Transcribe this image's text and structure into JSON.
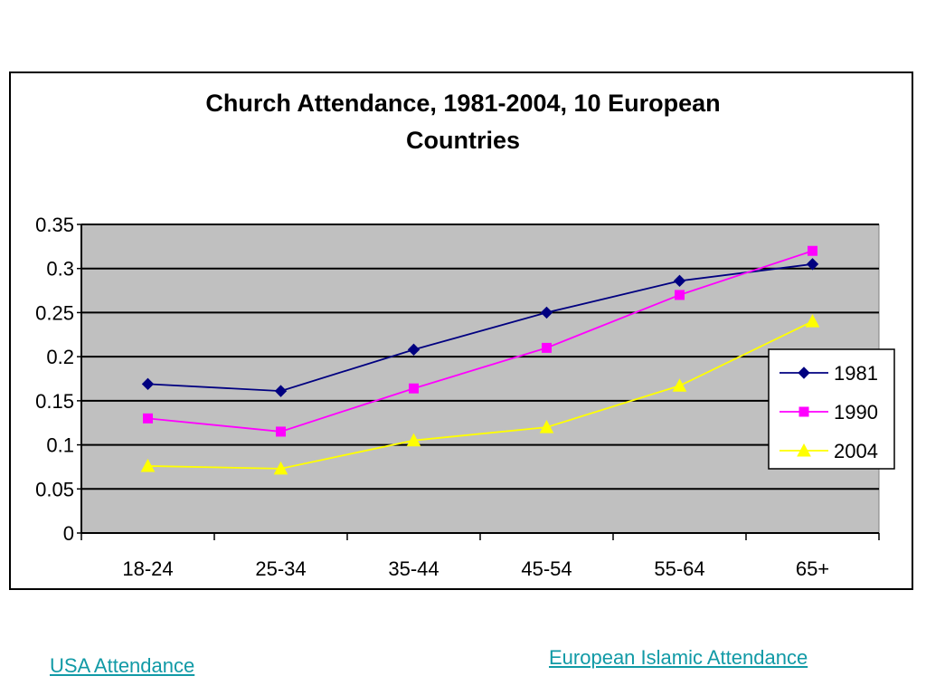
{
  "chart_data": {
    "type": "line",
    "title_lines": [
      "Church Attendance, 1981-2004, 10 European",
      "Countries"
    ],
    "categories": [
      "18-24",
      "25-34",
      "35-44",
      "45-54",
      "55-64",
      "65+"
    ],
    "ylim": [
      0,
      0.35
    ],
    "yticks": [
      "0",
      "0.05",
      "0.1",
      "0.15",
      "0.2",
      "0.25",
      "0.3",
      "0.35"
    ],
    "ytick_values": [
      0,
      0.05,
      0.1,
      0.15,
      0.2,
      0.25,
      0.3,
      0.35
    ],
    "grid": true,
    "plot_background": "#c0c0c0",
    "legend_position": "right",
    "series": [
      {
        "name": "1981",
        "values": [
          0.169,
          0.161,
          0.208,
          0.25,
          0.286,
          0.305
        ],
        "color": "#000080",
        "marker": "diamond"
      },
      {
        "name": "1990",
        "values": [
          0.13,
          0.115,
          0.164,
          0.21,
          0.27,
          0.32
        ],
        "color": "#ff00ff",
        "marker": "square"
      },
      {
        "name": "2004",
        "values": [
          0.076,
          0.073,
          0.105,
          0.12,
          0.167,
          0.24
        ],
        "color": "#ffff00",
        "marker": "triangle"
      }
    ]
  },
  "links": {
    "usa": "USA Attendance",
    "islamic": "European Islamic Attendance"
  }
}
